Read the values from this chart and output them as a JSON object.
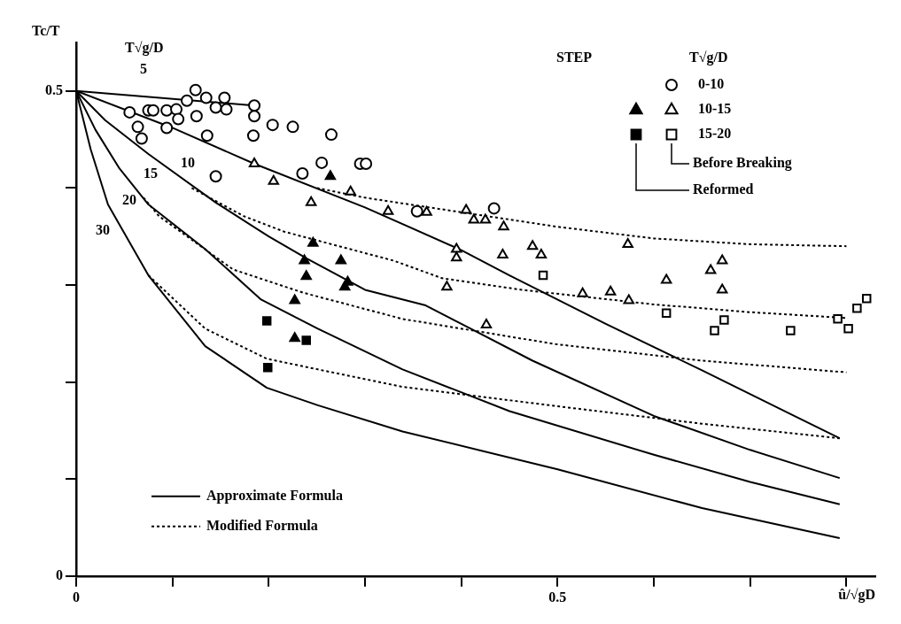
{
  "chart_data": {
    "type": "scatter",
    "title": "STEP",
    "xlabel": "û/√gD",
    "ylabel": "Tc/T",
    "legend_title": "T√g/D",
    "legend": "top right",
    "grid": false,
    "xlim": [
      0,
      0.83
    ],
    "xticks": [
      0,
      {
        "value": 0.1,
        "label": null
      },
      {
        "value": 0.2,
        "label": null
      },
      {
        "value": 0.3,
        "label": null
      },
      {
        "value": 0.4,
        "label": null
      },
      0.5,
      {
        "value": 0.6,
        "label": null
      },
      {
        "value": 0.7,
        "label": null
      },
      {
        "value": 0.8,
        "label": null
      }
    ],
    "ylim": [
      0,
      0.55
    ],
    "yticks": [
      0,
      {
        "value": 0.1,
        "label": null
      },
      {
        "value": 0.2,
        "label": null
      },
      {
        "value": 0.3,
        "label": null
      },
      {
        "value": 0.4,
        "label": null
      },
      0.5
    ],
    "annotations": [
      "Before Breaking",
      "Reformed",
      "T√g/D",
      "5",
      "10",
      "15",
      "20",
      "30"
    ],
    "series": [
      {
        "name": "0-10",
        "marker": "circle",
        "color": "#ffffff",
        "x": [
          0.0555,
          0.064,
          0.068,
          0.075,
          0.08,
          0.094,
          0.094,
          0.104,
          0.106,
          0.115,
          0.124,
          0.125,
          0.135,
          0.136,
          0.145,
          0.145,
          0.154,
          0.156,
          0.185,
          0.185,
          0.184,
          0.204,
          0.225,
          0.235,
          0.255,
          0.265,
          0.295,
          0.301,
          0.354,
          0.434
        ],
        "values": [
          0.478,
          0.463,
          0.451,
          0.48,
          0.48,
          0.48,
          0.462,
          0.481,
          0.471,
          0.49,
          0.501,
          0.474,
          0.493,
          0.454,
          0.483,
          0.412,
          0.493,
          0.481,
          0.485,
          0.474,
          0.454,
          0.465,
          0.463,
          0.415,
          0.426,
          0.455,
          0.425,
          0.425,
          0.376,
          0.379
        ]
      },
      {
        "marker": "triangle",
        "color": "#000000",
        "x": [
          0.264,
          0.246,
          0.237,
          0.239,
          0.275,
          0.282,
          0.279,
          0.227,
          0.227
        ],
        "values": [
          0.412,
          0.343,
          0.325,
          0.309,
          0.325,
          0.303,
          0.298,
          0.284,
          0.245
        ]
      },
      {
        "name": "10-15",
        "marker": "triangle",
        "color": "#ffffff",
        "x": [
          0.185,
          0.205,
          0.244,
          0.285,
          0.324,
          0.364,
          0.405,
          0.413,
          0.425,
          0.444,
          0.395,
          0.395,
          0.443,
          0.474,
          0.483,
          0.385,
          0.426,
          0.573,
          0.526,
          0.555,
          0.574,
          0.613,
          0.659,
          0.671,
          0.671
        ],
        "values": [
          0.425,
          0.407,
          0.385,
          0.396,
          0.376,
          0.375,
          0.377,
          0.367,
          0.367,
          0.36,
          0.337,
          0.328,
          0.331,
          0.34,
          0.331,
          0.298,
          0.259,
          0.342,
          0.291,
          0.293,
          0.284,
          0.305,
          0.315,
          0.325,
          0.295
        ]
      },
      {
        "marker": "square",
        "color": "#000000",
        "x": [
          0.198,
          0.239,
          0.199
        ],
        "values": [
          0.263,
          0.243,
          0.215
        ]
      },
      {
        "name": "15-20",
        "marker": "square",
        "color": "#ffffff",
        "x": [
          0.485,
          0.613,
          0.673,
          0.663,
          0.742,
          0.791,
          0.802,
          0.811,
          0.821
        ],
        "values": [
          0.31,
          0.271,
          0.264,
          0.253,
          0.253,
          0.265,
          0.255,
          0.276,
          0.286
        ]
      },
      {
        "name": "Approximate Formula",
        "type": "line",
        "line_style": "solid",
        "color": "#000000",
        "x": [
          0,
          0.185
        ],
        "values": [
          0.5,
          0.485
        ]
      },
      {
        "type": "line",
        "line_style": "solid",
        "color": "#000000",
        "x": [
          0,
          0.1,
          0.185,
          0.3,
          0.4,
          0.45,
          0.55,
          0.65,
          0.75,
          0.793
        ],
        "values": [
          0.5,
          0.462,
          0.425,
          0.38,
          0.336,
          0.31,
          0.26,
          0.212,
          0.163,
          0.142
        ]
      },
      {
        "type": "line",
        "line_style": "solid",
        "color": "#000000",
        "x": [
          0,
          0.03,
          0.075,
          0.145,
          0.2,
          0.24,
          0.3,
          0.363,
          0.4,
          0.474,
          0.6,
          0.7,
          0.793
        ],
        "values": [
          0.5,
          0.47,
          0.435,
          0.385,
          0.35,
          0.327,
          0.295,
          0.279,
          0.26,
          0.222,
          0.165,
          0.13,
          0.101
        ]
      },
      {
        "type": "line",
        "line_style": "solid",
        "color": "#000000",
        "x": [
          0,
          0.02,
          0.045,
          0.075,
          0.134,
          0.192,
          0.251,
          0.339,
          0.45,
          0.6,
          0.7,
          0.793
        ],
        "values": [
          0.5,
          0.46,
          0.42,
          0.383,
          0.337,
          0.285,
          0.255,
          0.213,
          0.17,
          0.125,
          0.097,
          0.074
        ]
      },
      {
        "type": "line",
        "line_style": "solid",
        "color": "#000000",
        "x": [
          0,
          0.015,
          0.033,
          0.075,
          0.134,
          0.198,
          0.251,
          0.339,
          0.5,
          0.65,
          0.793
        ],
        "values": [
          0.5,
          0.44,
          0.383,
          0.31,
          0.237,
          0.194,
          0.176,
          0.149,
          0.11,
          0.07,
          0.039
        ]
      },
      {
        "name": "Modified Formula",
        "type": "line",
        "line_style": "dotted",
        "color": "#000000",
        "x": [
          0.25,
          0.3,
          0.4,
          0.5,
          0.6,
          0.7,
          0.8
        ],
        "values": [
          0.4,
          0.39,
          0.375,
          0.36,
          0.348,
          0.342,
          0.34
        ]
      },
      {
        "type": "line",
        "line_style": "dotted",
        "color": "#000000",
        "x": [
          0.12,
          0.174,
          0.216,
          0.33,
          0.38,
          0.463,
          0.6,
          0.7,
          0.8
        ],
        "values": [
          0.4,
          0.371,
          0.355,
          0.325,
          0.307,
          0.295,
          0.28,
          0.272,
          0.266
        ]
      },
      {
        "type": "line",
        "line_style": "dotted",
        "color": "#000000",
        "x": [
          0.07,
          0.086,
          0.163,
          0.236,
          0.339,
          0.498,
          0.65,
          0.8
        ],
        "values": [
          0.39,
          0.371,
          0.316,
          0.292,
          0.265,
          0.239,
          0.222,
          0.21
        ]
      },
      {
        "type": "line",
        "line_style": "dotted",
        "color": "#000000",
        "x": [
          0.075,
          0.134,
          0.198,
          0.251,
          0.339,
          0.5,
          0.65,
          0.793
        ],
        "values": [
          0.31,
          0.255,
          0.224,
          0.213,
          0.195,
          0.175,
          0.157,
          0.142
        ]
      }
    ]
  }
}
